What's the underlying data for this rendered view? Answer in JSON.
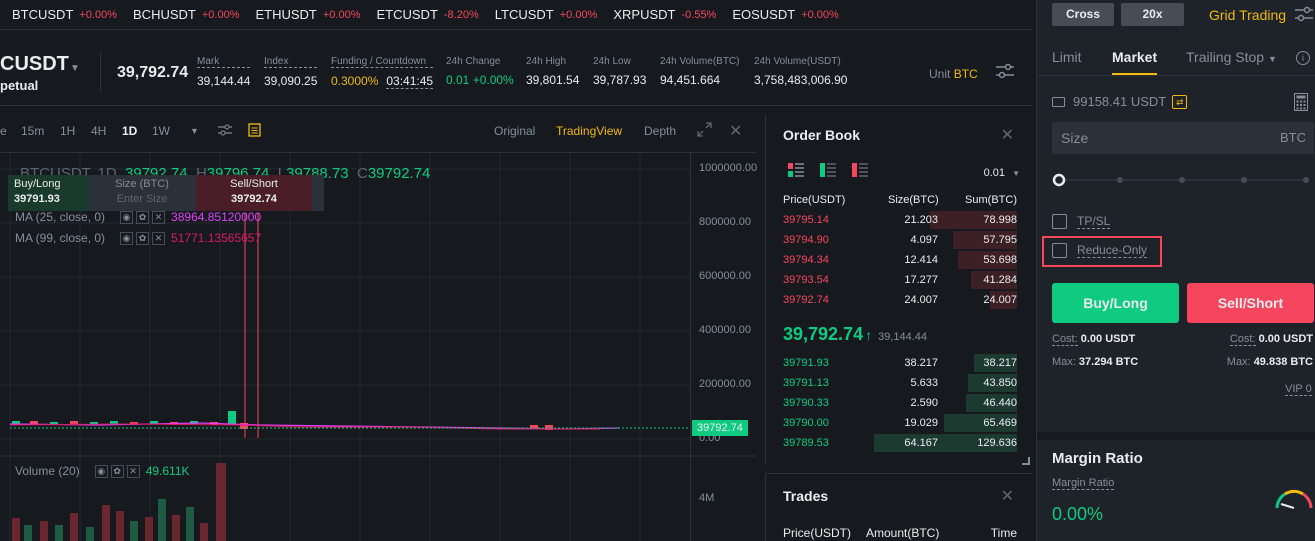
{
  "ticker": [
    {
      "symbol": "BTCUSDT",
      "change": "+0.00%"
    },
    {
      "symbol": "BCHUSDT",
      "change": "+0.00%"
    },
    {
      "symbol": "ETHUSDT",
      "change": "+0.00%"
    },
    {
      "symbol": "ETCUSDT",
      "change": "-8.20%"
    },
    {
      "symbol": "LTCUSDT",
      "change": "+0.00%"
    },
    {
      "symbol": "XRPUSDT",
      "change": "-0.55%"
    },
    {
      "symbol": "EOSUSDT",
      "change": "+0.00%"
    }
  ],
  "header": {
    "symbol": "CUSDT",
    "contract": "petual",
    "last_price": "39,792.74",
    "mark_label": "Mark",
    "mark": "39,144.44",
    "index_label": "Index",
    "index": "39,090.25",
    "funding_label": "Funding / Countdown",
    "funding": "0.3000%",
    "countdown": "03:41:45",
    "change_label": "24h Change",
    "change": "0.01 +0.00%",
    "high_label": "24h High",
    "high": "39,801.54",
    "low_label": "24h Low",
    "low": "39,787.93",
    "vol_btc_label": "24h Volume(BTC)",
    "vol_btc": "94,451.664",
    "vol_usdt_label": "24h Volume(USDT)",
    "vol_usdt": "3,758,483,006.90",
    "unit_label": "Unit",
    "unit": "BTC"
  },
  "chart_toolbar": {
    "timeframes": [
      "e",
      "15m",
      "1H",
      "4H",
      "1D",
      "1W"
    ],
    "active_timeframe": "1D",
    "views": [
      "Original",
      "TradingView",
      "Depth"
    ],
    "active_view": "TradingView"
  },
  "chart": {
    "symbol_line": "BTCUSDT, 1D",
    "o": "39792.74",
    "h_label": "H",
    "h": "39796.74",
    "l_label": "L",
    "l": "39788.73",
    "c_label": "C",
    "c": "39792.74",
    "quick_buy_label": "Buy/Long",
    "quick_buy_price": "39791.93",
    "quick_size_label": "Size (BTC)",
    "quick_size_placeholder": "Enter Size",
    "quick_sell_label": "Sell/Short",
    "quick_sell_price": "39792.74",
    "ma25_label": "MA (25, close, 0)",
    "ma25": "38964.85120000",
    "ma99_label": "MA (99, close, 0)",
    "ma99": "51771.13565657",
    "volume_label": "Volume (20)",
    "volume": "49.611K",
    "y_ticks": [
      "1000000.00",
      "800000.00",
      "600000.00",
      "400000.00",
      "200000.00",
      "0.00"
    ],
    "vol_tick": "4M",
    "price_tag": "39792.74",
    "ma25_color": "#e040fb",
    "ma99_color": "#d81b60"
  },
  "orderbook": {
    "title": "Order Book",
    "precision": "0.01",
    "headers": [
      "Price(USDT)",
      "Size(BTC)",
      "Sum(BTC)"
    ],
    "asks": [
      {
        "price": "39795.14",
        "size": "21.203",
        "sum": "78.998",
        "depth": 0.61
      },
      {
        "price": "39794.90",
        "size": "4.097",
        "sum": "57.795",
        "depth": 0.45
      },
      {
        "price": "39794.34",
        "size": "12.414",
        "sum": "53.698",
        "depth": 0.41
      },
      {
        "price": "39793.54",
        "size": "17.277",
        "sum": "41.284",
        "depth": 0.32
      },
      {
        "price": "39792.74",
        "size": "24.007",
        "sum": "24.007",
        "depth": 0.19
      }
    ],
    "mid_price": "39,792.74",
    "mid_mark": "39,144.44",
    "bids": [
      {
        "price": "39791.93",
        "size": "38.217",
        "sum": "38.217",
        "depth": 0.3
      },
      {
        "price": "39791.13",
        "size": "5.633",
        "sum": "43.850",
        "depth": 0.34
      },
      {
        "price": "39790.33",
        "size": "2.590",
        "sum": "46.440",
        "depth": 0.36
      },
      {
        "price": "39790.00",
        "size": "19.029",
        "sum": "65.469",
        "depth": 0.51
      },
      {
        "price": "39789.53",
        "size": "64.167",
        "sum": "129.636",
        "depth": 1.0
      }
    ]
  },
  "trades": {
    "title": "Trades",
    "headers": [
      "Price(USDT)",
      "Amount(BTC)",
      "Time"
    ]
  },
  "order_panel": {
    "margin_mode": "Cross",
    "leverage": "20x",
    "grid_trading": "Grid Trading",
    "tabs": [
      "Limit",
      "Market",
      "Trailing Stop"
    ],
    "active_tab": "Market",
    "balance": "99158.41 USDT",
    "size_placeholder": "Size",
    "size_unit": "BTC",
    "tpsl_label": "TP/SL",
    "reduce_only_label": "Reduce-Only",
    "buy_label": "Buy/Long",
    "sell_label": "Sell/Short",
    "cost_label": "Cost:",
    "buy_cost": "0.00 USDT",
    "sell_cost": "0.00 USDT",
    "max_label": "Max:",
    "buy_max": "37.294 BTC",
    "sell_max": "49.838 BTC",
    "vip": "VIP 0",
    "margin_ratio_title": "Margin Ratio",
    "margin_ratio_label": "Margin Ratio",
    "margin_ratio": "0.00%"
  }
}
